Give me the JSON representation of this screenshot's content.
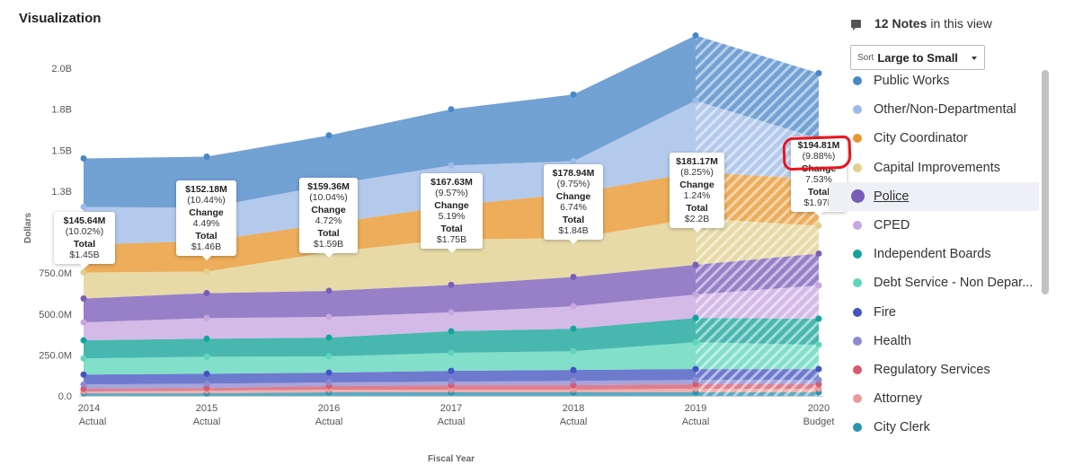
{
  "header": {
    "title": "Visualization"
  },
  "notes": {
    "count_label": "12 Notes",
    "suffix": "in this view",
    "icon": "comment-icon"
  },
  "sort": {
    "prefix": "Sort",
    "value": "Large to Small"
  },
  "legend": {
    "selected": "Police",
    "items": [
      {
        "label": "Public Works",
        "color": "#4a86c8"
      },
      {
        "label": "Other/Non-Departmental",
        "color": "#9dbbe8"
      },
      {
        "label": "City Coordinator",
        "color": "#e8962c"
      },
      {
        "label": "Capital Improvements",
        "color": "#e0d08e"
      },
      {
        "label": "Police",
        "color": "#7a5cb8"
      },
      {
        "label": "CPED",
        "color": "#c8a6e0"
      },
      {
        "label": "Independent Boards",
        "color": "#14a39a"
      },
      {
        "label": "Debt Service - Non Depar...",
        "color": "#5fd6bb"
      },
      {
        "label": "Fire",
        "color": "#4454c0"
      },
      {
        "label": "Health",
        "color": "#8d8ad0"
      },
      {
        "label": "Regulatory Services",
        "color": "#d65a6e"
      },
      {
        "label": "Attorney",
        "color": "#eb9a9a"
      },
      {
        "label": "City Clerk",
        "color": "#2a93b0"
      }
    ]
  },
  "tooltips": [
    {
      "amount": "$145.64M",
      "share": "(10.02%)",
      "total_label": "Total",
      "total": "$1.45B"
    },
    {
      "amount": "$152.18M",
      "share": "(10.44%)",
      "change_label": "Change",
      "change": "4.49%",
      "total_label": "Total",
      "total": "$1.46B"
    },
    {
      "amount": "$159.36M",
      "share": "(10.04%)",
      "change_label": "Change",
      "change": "4.72%",
      "total_label": "Total",
      "total": "$1.59B"
    },
    {
      "amount": "$167.63M",
      "share": "(9.57%)",
      "change_label": "Change",
      "change": "5.19%",
      "total_label": "Total",
      "total": "$1.75B"
    },
    {
      "amount": "$178.94M",
      "share": "(9.75%)",
      "change_label": "Change",
      "change": "6.74%",
      "total_label": "Total",
      "total": "$1.84B"
    },
    {
      "amount": "$181.17M",
      "share": "(8.25%)",
      "change_label": "Change",
      "change": "1.24%",
      "total_label": "Total",
      "total": "$2.2B"
    },
    {
      "amount": "$194.81M",
      "share": "(9.88%)",
      "change_label": "Change",
      "change": "7.53%",
      "total_label": "Total",
      "total": "$1.97B"
    }
  ],
  "chart_data": {
    "type": "area",
    "stacked": true,
    "xlabel": "Fiscal Year",
    "ylabel": "Dollars",
    "ylim": [
      0,
      2000000000
    ],
    "yticks": [
      {
        "value": 0,
        "label": "0.0"
      },
      {
        "value": 250000000,
        "label": "250.0M"
      },
      {
        "value": 500000000,
        "label": "500.0M"
      },
      {
        "value": 750000000,
        "label": "750.0M"
      },
      {
        "value": 1250000000,
        "label": "1.3B"
      },
      {
        "value": 1500000000,
        "label": "1.5B"
      },
      {
        "value": 1750000000,
        "label": "1.8B"
      },
      {
        "value": 2000000000,
        "label": "2.0B"
      }
    ],
    "categories": [
      {
        "year": "2014",
        "kind": "Actual"
      },
      {
        "year": "2015",
        "kind": "Actual"
      },
      {
        "year": "2016",
        "kind": "Actual"
      },
      {
        "year": "2017",
        "kind": "Actual"
      },
      {
        "year": "2018",
        "kind": "Actual"
      },
      {
        "year": "2019",
        "kind": "Actual"
      },
      {
        "year": "2020",
        "kind": "Budget"
      }
    ],
    "hatched_from": "2019",
    "value_unit": "millions of dollars",
    "series": [
      {
        "name": "City Clerk",
        "color": "#2a93b0",
        "values": [
          16,
          16,
          22,
          22,
          22,
          22,
          22
        ]
      },
      {
        "name": "Attorney",
        "color": "#eb9a9a",
        "values": [
          11,
          16,
          16,
          16,
          16,
          22,
          22
        ]
      },
      {
        "name": "Regulatory Services",
        "color": "#d65a6e",
        "values": [
          16,
          16,
          22,
          27,
          27,
          27,
          27
        ]
      },
      {
        "name": "Health",
        "color": "#8d8ad0",
        "values": [
          27,
          27,
          22,
          22,
          27,
          27,
          27
        ]
      },
      {
        "name": "Fire",
        "color": "#4454c0",
        "values": [
          60,
          60,
          60,
          66,
          66,
          66,
          66
        ]
      },
      {
        "name": "Debt Service - Non Depar...",
        "color": "#5fd6bb",
        "values": [
          99,
          104,
          99,
          110,
          115,
          164,
          148
        ]
      },
      {
        "name": "Independent Boards",
        "color": "#14a39a",
        "values": [
          110,
          110,
          115,
          132,
          137,
          148,
          159
        ]
      },
      {
        "name": "CPED",
        "color": "#c8a6e0",
        "values": [
          110,
          126,
          126,
          115,
          137,
          143,
          203
        ]
      },
      {
        "name": "Police",
        "color": "#7a5cb8",
        "values": [
          145.64,
          152.18,
          159.36,
          167.63,
          178.94,
          181.17,
          194.81
        ]
      },
      {
        "name": "Capital Improvements",
        "color": "#e0d08e",
        "values": [
          159,
          132,
          236,
          279,
          236,
          285,
          170
        ]
      },
      {
        "name": "City Coordinator",
        "color": "#e8962c",
        "values": [
          170,
          186,
          175,
          203,
          274,
          279,
          285
        ]
      },
      {
        "name": "Other/Non-Departmental",
        "color": "#9dbbe8",
        "values": [
          230,
          203,
          236,
          247,
          197,
          438,
          247
        ]
      },
      {
        "name": "Public Works",
        "color": "#4a86c8",
        "values": [
          296,
          312,
          302,
          343,
          407,
          398,
          399
        ]
      }
    ]
  }
}
